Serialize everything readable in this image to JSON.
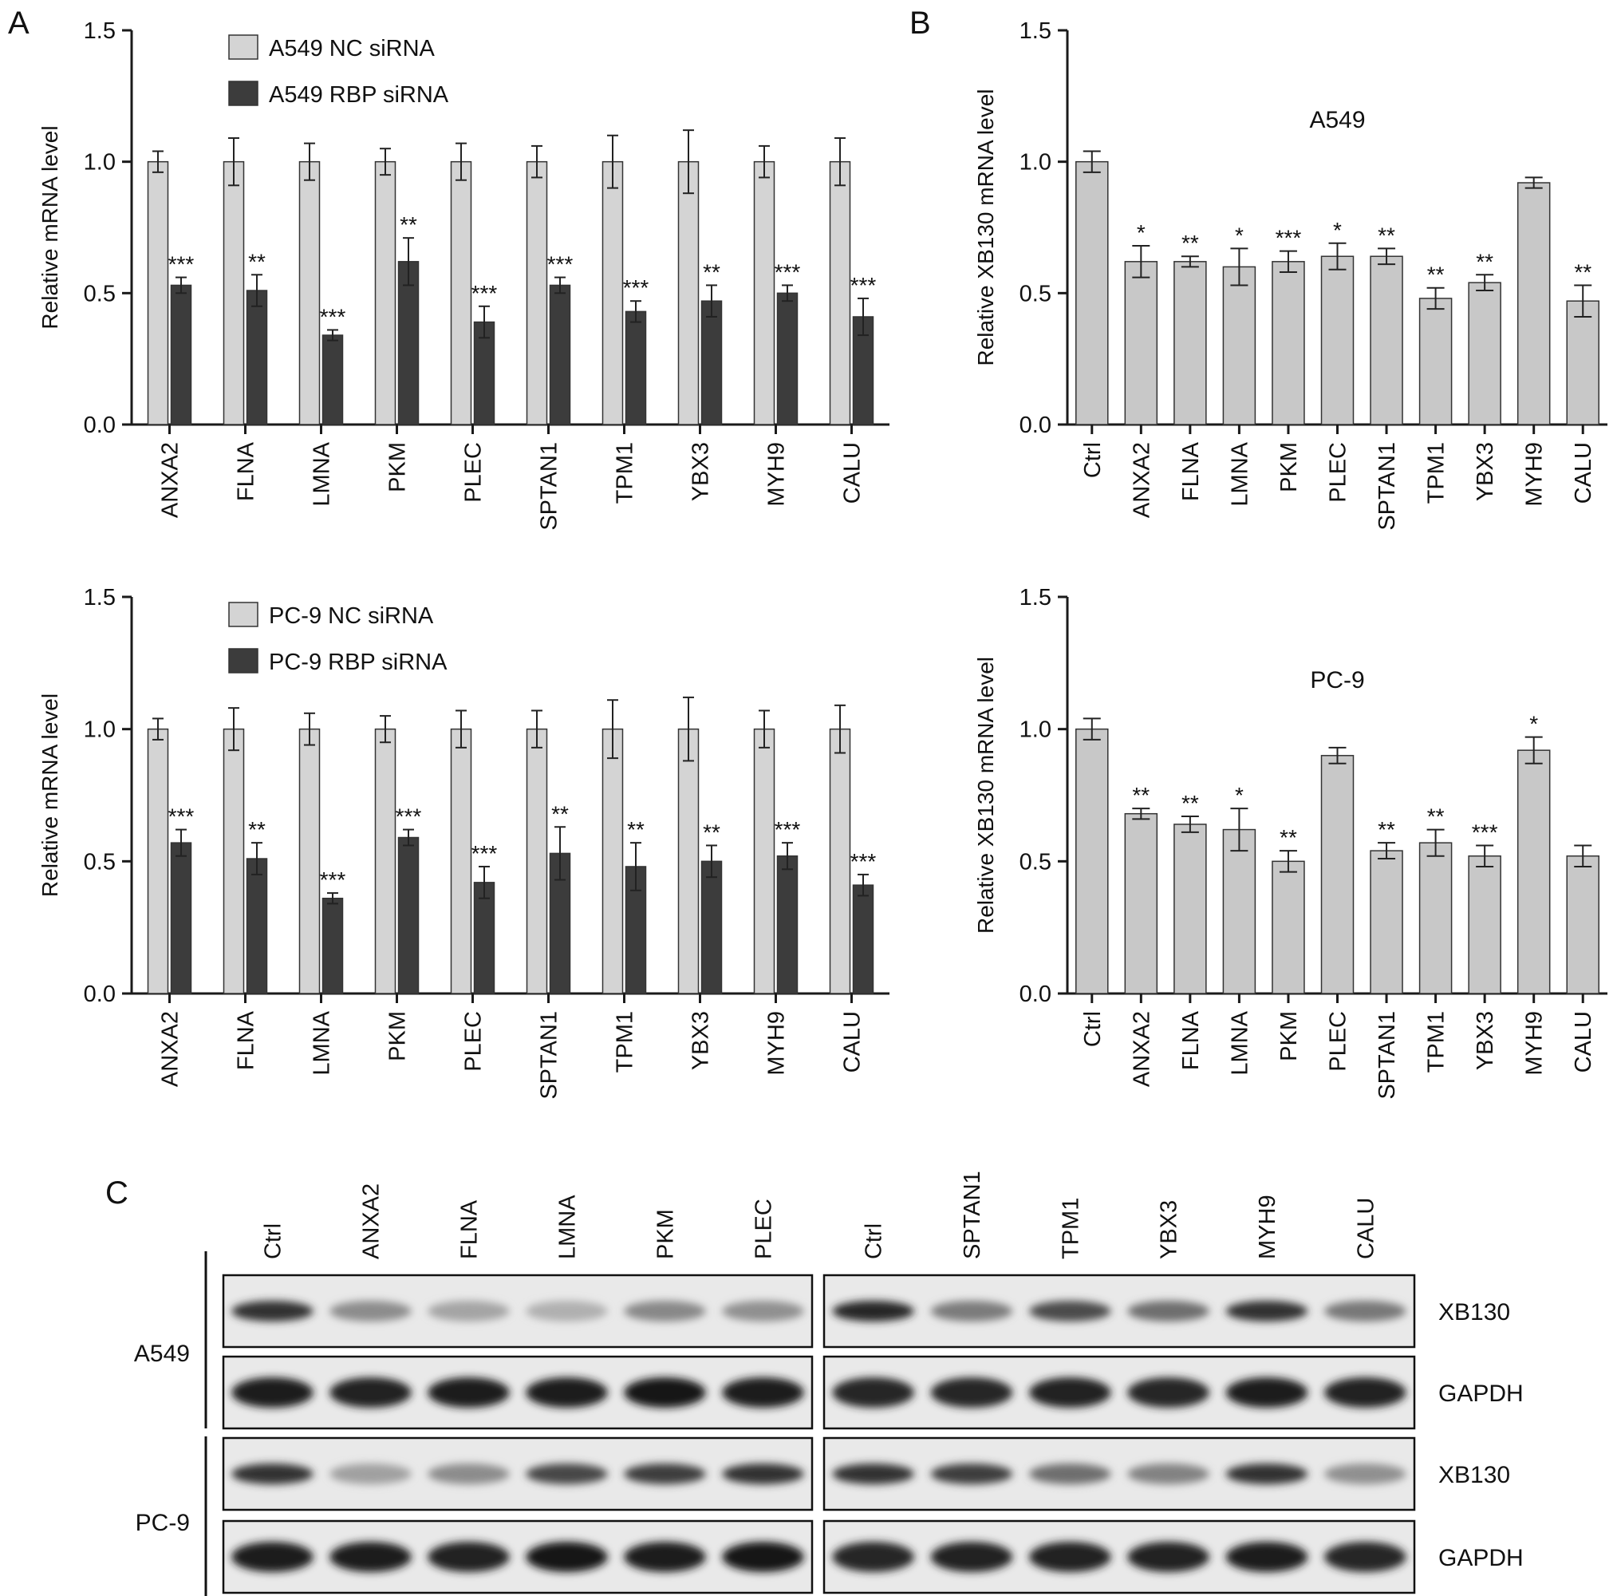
{
  "panel_letters": {
    "a": "A",
    "b": "B",
    "c": "C"
  },
  "colors": {
    "nc": "#d4d4d4",
    "rbp": "#3c3c3c",
    "single": "#c8c8c8",
    "axis": "#1a1a1a"
  },
  "chart_data": [
    {
      "id": "A-top",
      "type": "bar",
      "ylabel": "Relative mRNA level",
      "ylim": [
        0,
        1.5
      ],
      "yticks": [
        "0.0",
        "0.5",
        "1.0",
        "1.5"
      ],
      "grid": false,
      "legend_position": "top-left",
      "categories": [
        "ANXA2",
        "FLNA",
        "LMNA",
        "PKM",
        "PLEC",
        "SPTAN1",
        "TPM1",
        "YBX3",
        "MYH9",
        "CALU"
      ],
      "series": [
        {
          "name": "A549 NC siRNA",
          "values": [
            1.0,
            1.0,
            1.0,
            1.0,
            1.0,
            1.0,
            1.0,
            1.0,
            1.0,
            1.0
          ],
          "errors": [
            0.04,
            0.09,
            0.07,
            0.05,
            0.07,
            0.06,
            0.1,
            0.12,
            0.06,
            0.09
          ],
          "color": "#d4d4d4",
          "sig": [
            "",
            "",
            "",
            "",
            "",
            "",
            "",
            "",
            "",
            ""
          ]
        },
        {
          "name": "A549 RBP siRNA",
          "values": [
            0.53,
            0.51,
            0.34,
            0.62,
            0.39,
            0.53,
            0.43,
            0.47,
            0.5,
            0.41
          ],
          "errors": [
            0.03,
            0.06,
            0.02,
            0.09,
            0.06,
            0.03,
            0.04,
            0.06,
            0.03,
            0.07
          ],
          "color": "#3c3c3c",
          "sig": [
            "***",
            "**",
            "***",
            "**",
            "***",
            "***",
            "***",
            "**",
            "***",
            "***"
          ]
        }
      ]
    },
    {
      "id": "A-bottom",
      "type": "bar",
      "ylabel": "Relative mRNA level",
      "ylim": [
        0,
        1.5
      ],
      "yticks": [
        "0.0",
        "0.5",
        "1.0",
        "1.5"
      ],
      "grid": false,
      "legend_position": "top-left",
      "categories": [
        "ANXA2",
        "FLNA",
        "LMNA",
        "PKM",
        "PLEC",
        "SPTAN1",
        "TPM1",
        "YBX3",
        "MYH9",
        "CALU"
      ],
      "series": [
        {
          "name": "PC-9 NC siRNA",
          "values": [
            1.0,
            1.0,
            1.0,
            1.0,
            1.0,
            1.0,
            1.0,
            1.0,
            1.0,
            1.0
          ],
          "errors": [
            0.04,
            0.08,
            0.06,
            0.05,
            0.07,
            0.07,
            0.11,
            0.12,
            0.07,
            0.09
          ],
          "color": "#d4d4d4",
          "sig": [
            "",
            "",
            "",
            "",
            "",
            "",
            "",
            "",
            "",
            ""
          ]
        },
        {
          "name": "PC-9 RBP siRNA",
          "values": [
            0.57,
            0.51,
            0.36,
            0.59,
            0.42,
            0.53,
            0.48,
            0.5,
            0.52,
            0.41
          ],
          "errors": [
            0.05,
            0.06,
            0.02,
            0.03,
            0.06,
            0.1,
            0.09,
            0.06,
            0.05,
            0.04
          ],
          "color": "#3c3c3c",
          "sig": [
            "***",
            "**",
            "***",
            "***",
            "***",
            "**",
            "**",
            "**",
            "***",
            "***"
          ]
        }
      ]
    },
    {
      "id": "B-top",
      "type": "bar",
      "title": "A549",
      "ylabel": "Relative XB130 mRNA level",
      "ylim": [
        0,
        1.5
      ],
      "yticks": [
        "0.0",
        "0.5",
        "1.0",
        "1.5"
      ],
      "grid": false,
      "categories": [
        "Ctrl",
        "ANXA2",
        "FLNA",
        "LMNA",
        "PKM",
        "PLEC",
        "SPTAN1",
        "TPM1",
        "YBX3",
        "MYH9",
        "CALU"
      ],
      "series": [
        {
          "values": [
            1.0,
            0.62,
            0.62,
            0.6,
            0.62,
            0.64,
            0.64,
            0.48,
            0.54,
            0.92,
            0.47
          ],
          "errors": [
            0.04,
            0.06,
            0.02,
            0.07,
            0.04,
            0.05,
            0.03,
            0.04,
            0.03,
            0.02,
            0.06
          ],
          "color": "#c8c8c8",
          "sig": [
            "",
            "*",
            "**",
            "*",
            "***",
            "*",
            "**",
            "**",
            "**",
            "",
            "**"
          ]
        }
      ]
    },
    {
      "id": "B-bottom",
      "type": "bar",
      "title": "PC-9",
      "ylabel": "Relative XB130 mRNA level",
      "ylim": [
        0,
        1.5
      ],
      "yticks": [
        "0.0",
        "0.5",
        "1.0",
        "1.5"
      ],
      "grid": false,
      "categories": [
        "Ctrl",
        "ANXA2",
        "FLNA",
        "LMNA",
        "PKM",
        "PLEC",
        "SPTAN1",
        "TPM1",
        "YBX3",
        "MYH9",
        "CALU"
      ],
      "series": [
        {
          "values": [
            1.0,
            0.68,
            0.64,
            0.62,
            0.5,
            0.9,
            0.54,
            0.57,
            0.52,
            0.92,
            0.52
          ],
          "errors": [
            0.04,
            0.02,
            0.03,
            0.08,
            0.04,
            0.03,
            0.03,
            0.05,
            0.04,
            0.05,
            0.04
          ],
          "color": "#c8c8c8",
          "sig": [
            "",
            "**",
            "**",
            "*",
            "**",
            "",
            "**",
            "**",
            "***",
            "*",
            ""
          ]
        }
      ]
    }
  ],
  "blot": {
    "lanes_left": [
      "Ctrl",
      "ANXA2",
      "FLNA",
      "LMNA",
      "PKM",
      "PLEC"
    ],
    "lanes_right": [
      "Ctrl",
      "SPTAN1",
      "TPM1",
      "YBX3",
      "MYH9",
      "CALU"
    ],
    "cell_lines": [
      "A549",
      "PC-9"
    ],
    "row_labels": [
      "XB130",
      "GAPDH",
      "XB130",
      "GAPDH"
    ],
    "intensity": [
      [
        0.85,
        0.4,
        0.28,
        0.22,
        0.42,
        0.38,
        0.9,
        0.48,
        0.72,
        0.55,
        0.85,
        0.5
      ],
      [
        0.95,
        0.92,
        0.95,
        0.95,
        0.98,
        0.96,
        0.9,
        0.9,
        0.92,
        0.9,
        0.95,
        0.92
      ],
      [
        0.85,
        0.3,
        0.4,
        0.75,
        0.8,
        0.85,
        0.85,
        0.8,
        0.55,
        0.45,
        0.85,
        0.38
      ],
      [
        0.95,
        0.95,
        0.92,
        0.98,
        0.96,
        0.98,
        0.9,
        0.92,
        0.92,
        0.92,
        0.96,
        0.9
      ]
    ]
  }
}
